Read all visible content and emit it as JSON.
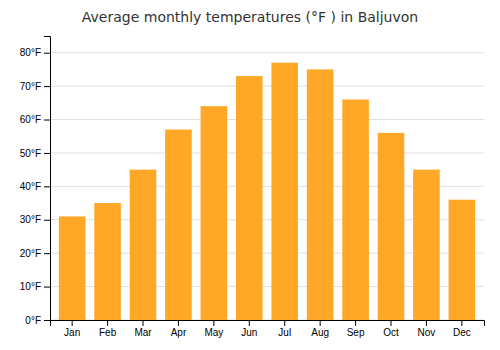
{
  "chart_data": {
    "type": "bar",
    "title": "Average monthly temperatures (°F ) in Baljuvon",
    "categories": [
      "Jan",
      "Feb",
      "Mar",
      "Apr",
      "May",
      "Jun",
      "Jul",
      "Aug",
      "Sep",
      "Oct",
      "Nov",
      "Dec"
    ],
    "values": [
      31,
      35,
      45,
      57,
      64,
      73,
      77,
      75,
      66,
      56,
      45,
      36
    ],
    "color": "#FFA726",
    "ylim": [
      0,
      85
    ],
    "yticks": [
      {
        "value": 0,
        "label": "0°F"
      },
      {
        "value": 10,
        "label": "10°F"
      },
      {
        "value": 20,
        "label": "20°F"
      },
      {
        "value": 30,
        "label": "30°F"
      },
      {
        "value": 40,
        "label": "40°F"
      },
      {
        "value": 50,
        "label": "50°F"
      },
      {
        "value": 60,
        "label": "60°F"
      },
      {
        "value": 70,
        "label": "70°F"
      },
      {
        "value": 80,
        "label": "80°F"
      }
    ],
    "grid": true
  }
}
